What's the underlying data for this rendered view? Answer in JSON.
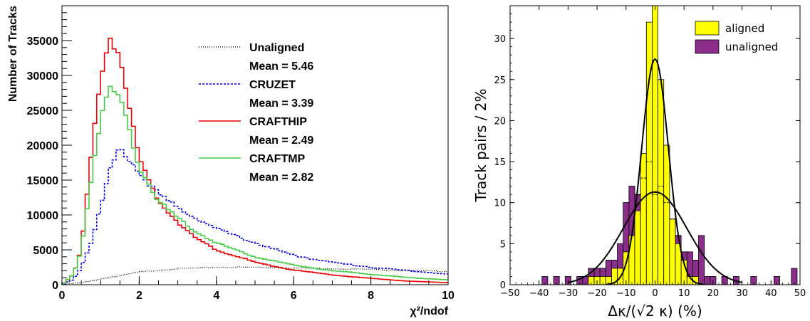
{
  "chart_data": [
    {
      "type": "line",
      "xlabel": "χ²/ndof",
      "ylabel": "Number of Tracks",
      "xlim": [
        0,
        10
      ],
      "ylim": [
        0,
        40000
      ],
      "xticks": [
        "0",
        "2",
        "4",
        "6",
        "8",
        "10"
      ],
      "yticks": [
        "0",
        "5000",
        "10000",
        "15000",
        "20000",
        "25000",
        "30000",
        "35000"
      ],
      "legend_position": "top-right",
      "series": [
        {
          "name": "Unaligned",
          "mean_label": "Mean = 5.46",
          "color": "#000000",
          "style": "dotted",
          "x": [
            0,
            0.5,
            1,
            1.5,
            2,
            3,
            4,
            5,
            6,
            7,
            8,
            9,
            10
          ],
          "y": [
            0,
            300,
            800,
            1300,
            1800,
            2300,
            2500,
            2500,
            2400,
            2300,
            2200,
            2000,
            1900
          ]
        },
        {
          "name": "CRUZET",
          "mean_label": "Mean = 3.39",
          "color": "#0000ee",
          "style": "dashed",
          "x": [
            0,
            0.3,
            0.5,
            0.75,
            1,
            1.25,
            1.5,
            1.75,
            2,
            2.5,
            3,
            3.5,
            4,
            5,
            6,
            7,
            8,
            9,
            10
          ],
          "y": [
            0,
            800,
            2500,
            6000,
            11000,
            16500,
            19500,
            18000,
            16000,
            13000,
            11000,
            9500,
            8000,
            6000,
            4200,
            3200,
            2500,
            2000,
            1500
          ]
        },
        {
          "name": "CRAFTHIP",
          "mean_label": "Mean = 2.49",
          "color": "#ee0000",
          "style": "solid",
          "x": [
            0,
            0.3,
            0.5,
            0.75,
            1,
            1.25,
            1.5,
            1.75,
            2,
            2.5,
            3,
            3.5,
            4,
            5,
            6,
            7,
            8,
            9,
            10
          ],
          "y": [
            0,
            1500,
            5000,
            18000,
            30000,
            35500,
            33000,
            25000,
            18000,
            12000,
            9000,
            6500,
            5000,
            3200,
            2100,
            1400,
            900,
            500,
            300
          ]
        },
        {
          "name": "CRAFTMP",
          "mean_label": "Mean = 2.82",
          "color": "#44cc44",
          "style": "solid",
          "x": [
            0,
            0.3,
            0.5,
            0.75,
            1,
            1.25,
            1.5,
            1.75,
            2,
            2.5,
            3,
            3.5,
            4,
            5,
            6,
            7,
            8,
            9,
            10
          ],
          "y": [
            0,
            1500,
            5000,
            15000,
            24000,
            28000,
            27000,
            22000,
            17000,
            12000,
            9500,
            7500,
            6000,
            4000,
            2800,
            2000,
            1500,
            1000,
            700
          ]
        }
      ]
    },
    {
      "type": "bar",
      "xlabel": "Δκ/(√2 κ) (%)",
      "ylabel": "Track pairs / 2%",
      "xlim": [
        -50,
        50
      ],
      "ylim": [
        0,
        34
      ],
      "xticks": [
        "−50",
        "−40",
        "−30",
        "−20",
        "−10",
        "0",
        "10",
        "20",
        "30",
        "40",
        "50"
      ],
      "yticks": [
        "0",
        "5",
        "10",
        "15",
        "20",
        "25",
        "30"
      ],
      "legend_position": "top-right",
      "series": [
        {
          "name": "unaligned",
          "color": "#8b2e8b",
          "fit": "gaussian",
          "fit_peak": 11.3,
          "fit_sigma": 11,
          "x": [
            -38,
            -34,
            -30,
            -28,
            -26,
            -24,
            -22,
            -20,
            -18,
            -16,
            -14,
            -12,
            -10,
            -8,
            -6,
            -4,
            -2,
            0,
            2,
            4,
            6,
            8,
            10,
            12,
            14,
            16,
            18,
            20,
            22,
            24,
            26,
            28,
            30,
            34,
            38,
            42,
            48
          ],
          "y": [
            1,
            1,
            1,
            0,
            1,
            1,
            2,
            2,
            2,
            3,
            3,
            5,
            10,
            12,
            11,
            13,
            15,
            11,
            12,
            10,
            8,
            6,
            4,
            4,
            3,
            6,
            1,
            1,
            0,
            1,
            0,
            1,
            0,
            1,
            0,
            1,
            2
          ]
        },
        {
          "name": "aligned",
          "color": "#ffff00",
          "fit": "gaussian",
          "fit_peak": 27.5,
          "fit_sigma": 4.6,
          "x": [
            -24,
            -22,
            -20,
            -18,
            -16,
            -14,
            -12,
            -10,
            -8,
            -6,
            -4,
            -2,
            0,
            2,
            4,
            6,
            8,
            10,
            12,
            14
          ],
          "y": [
            0,
            1,
            1,
            1,
            1,
            2,
            2,
            4,
            6,
            9,
            16,
            32,
            34,
            25,
            17,
            8,
            5,
            3,
            1,
            1
          ]
        }
      ]
    }
  ]
}
